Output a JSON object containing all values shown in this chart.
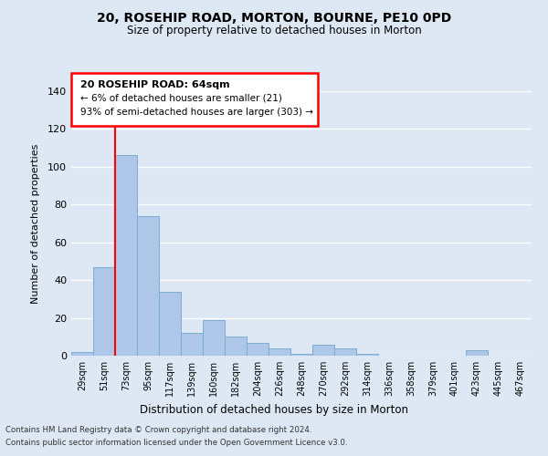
{
  "title": "20, ROSEHIP ROAD, MORTON, BOURNE, PE10 0PD",
  "subtitle": "Size of property relative to detached houses in Morton",
  "xlabel": "Distribution of detached houses by size in Morton",
  "ylabel": "Number of detached properties",
  "categories": [
    "29sqm",
    "51sqm",
    "73sqm",
    "95sqm",
    "117sqm",
    "139sqm",
    "160sqm",
    "182sqm",
    "204sqm",
    "226sqm",
    "248sqm",
    "270sqm",
    "292sqm",
    "314sqm",
    "336sqm",
    "358sqm",
    "379sqm",
    "401sqm",
    "423sqm",
    "445sqm",
    "467sqm"
  ],
  "values": [
    2,
    47,
    106,
    74,
    34,
    12,
    19,
    10,
    7,
    4,
    1,
    6,
    4,
    1,
    0,
    0,
    0,
    0,
    3,
    0,
    0
  ],
  "bar_color": "#aec6e8",
  "bar_edge_color": "#7aadd4",
  "ylim": [
    0,
    140
  ],
  "yticks": [
    0,
    20,
    40,
    60,
    80,
    100,
    120,
    140
  ],
  "annotation_title": "20 ROSEHIP ROAD: 64sqm",
  "annotation_line1": "← 6% of detached houses are smaller (21)",
  "annotation_line2": "93% of semi-detached houses are larger (303) →",
  "footer1": "Contains HM Land Registry data © Crown copyright and database right 2024.",
  "footer2": "Contains public sector information licensed under the Open Government Licence v3.0.",
  "bg_color": "#dde8f4",
  "plot_bg_color": "#dde8f4"
}
